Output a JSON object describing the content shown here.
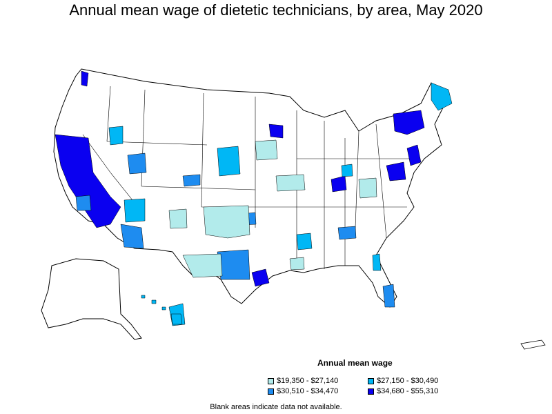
{
  "title": "Annual mean wage of dietetic technicians, by area, May 2020",
  "legend": {
    "title": "Annual mean wage",
    "items": [
      {
        "label": "$19,350 - $27,140",
        "color": "#b2ebeb"
      },
      {
        "label": "$27,150 - $30,490",
        "color": "#00b7f5"
      },
      {
        "label": "$30,510 - $34,470",
        "color": "#1e8cf0"
      },
      {
        "label": "$34,680 - $55,310",
        "color": "#0a00f0"
      }
    ]
  },
  "footnote": "Blank areas indicate data not available.",
  "colors": {
    "tier1": "#b2ebeb",
    "tier2": "#00b7f5",
    "tier3": "#1e8cf0",
    "tier4": "#0a00f0",
    "blank": "#ffffff",
    "border": "#000000"
  }
}
